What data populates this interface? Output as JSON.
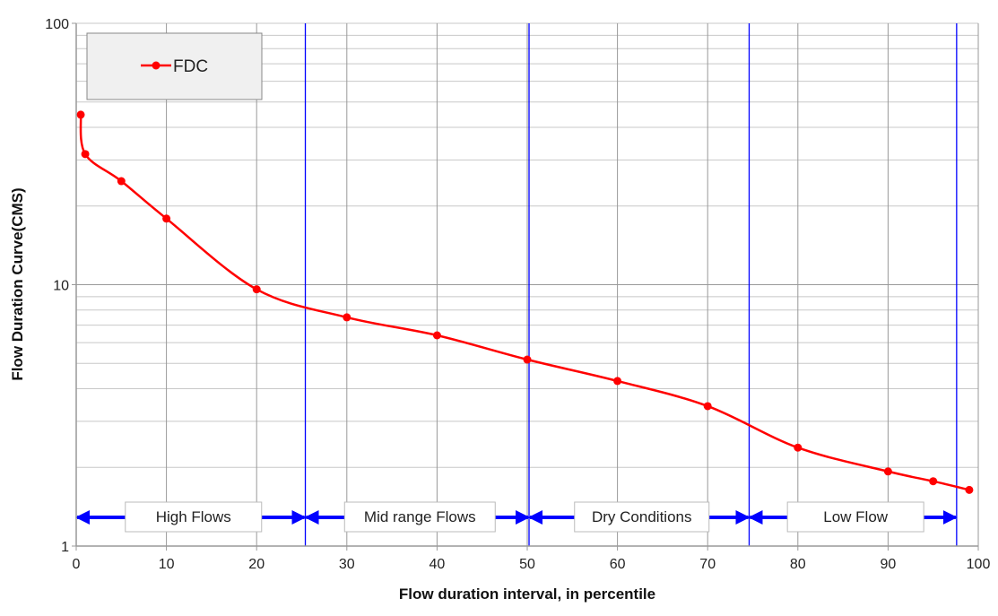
{
  "chart_data": {
    "type": "line",
    "title": "",
    "xlabel": "Flow duration interval, in percentile",
    "ylabel": "Flow Duration Curve(CMS)",
    "xlim": [
      0,
      100
    ],
    "ylim": [
      1,
      100
    ],
    "yscale": "log",
    "grid": true,
    "xticks": [
      "0",
      "10",
      "20",
      "30",
      "40",
      "50",
      "60",
      "70",
      "80",
      "90",
      "100"
    ],
    "yticks": [
      "1",
      "10",
      "100"
    ],
    "legend": {
      "position": "top-left",
      "entries": [
        "FDC"
      ]
    },
    "series": [
      {
        "name": "FDC",
        "color": "#ff0000",
        "x": [
          0.5,
          1,
          5,
          10,
          20,
          30,
          40,
          50,
          60,
          70,
          80,
          90,
          95,
          99
        ],
        "y": [
          44.7,
          31.6,
          24.9,
          17.9,
          9.6,
          7.5,
          6.4,
          5.17,
          4.28,
          3.43,
          2.38,
          1.93,
          1.77,
          1.64
        ]
      }
    ],
    "boundary_color": "#0000ff",
    "regions": [
      {
        "label": "High Flows",
        "from": 0,
        "to": 25.4
      },
      {
        "label": "Mid range Flows",
        "from": 25.4,
        "to": 50.2
      },
      {
        "label": "Dry Conditions",
        "from": 50.2,
        "to": 74.6
      },
      {
        "label": "Low Flow",
        "from": 74.6,
        "to": 97.6
      }
    ]
  }
}
